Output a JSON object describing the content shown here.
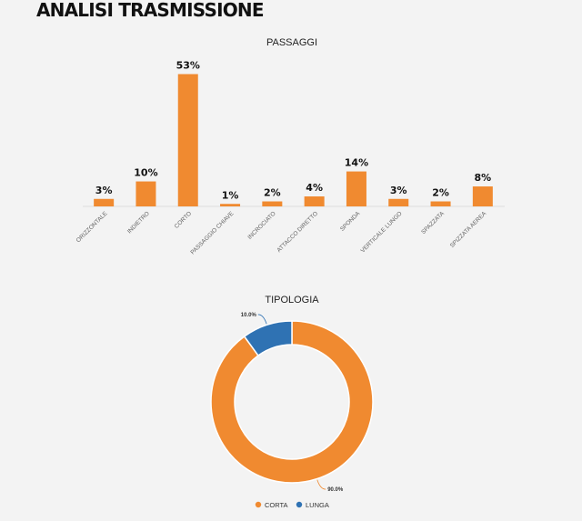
{
  "page": {
    "title": "ANALISI TRASMISSIONE"
  },
  "colors": {
    "orange": "#f08a30",
    "blue": "#2f72b3",
    "background": "#f3f3f3"
  },
  "chart_data": [
    {
      "type": "bar",
      "title": "PASSAGGI",
      "categories": [
        "ORIZZONTALE",
        "INDIETRO",
        "CORTO",
        "PASSAGGIO CHIAVE",
        "INCROCIATO",
        "ATTACCO DIRETTO",
        "SPONDA",
        "VERTICALE LUNGO",
        "SPAZZATA",
        "SPIZZATA AEREA"
      ],
      "values": [
        3,
        10,
        53,
        1,
        2,
        4,
        14,
        3,
        2,
        8
      ],
      "labels": [
        "3%",
        "10%",
        "53%",
        "1%",
        "2%",
        "4%",
        "14%",
        "3%",
        "2%",
        "8%"
      ],
      "ylim": [
        0,
        55
      ],
      "color": "#f08a30",
      "grid": false
    },
    {
      "type": "pie",
      "title": "TIPOLOGIA",
      "slices": [
        {
          "name": "CORTA",
          "value": 90.0,
          "label": "90.0%",
          "color": "#f08a30"
        },
        {
          "name": "LUNGA",
          "value": 10.0,
          "label": "10.0%",
          "color": "#2f72b3"
        }
      ],
      "legend": "bottom"
    }
  ]
}
